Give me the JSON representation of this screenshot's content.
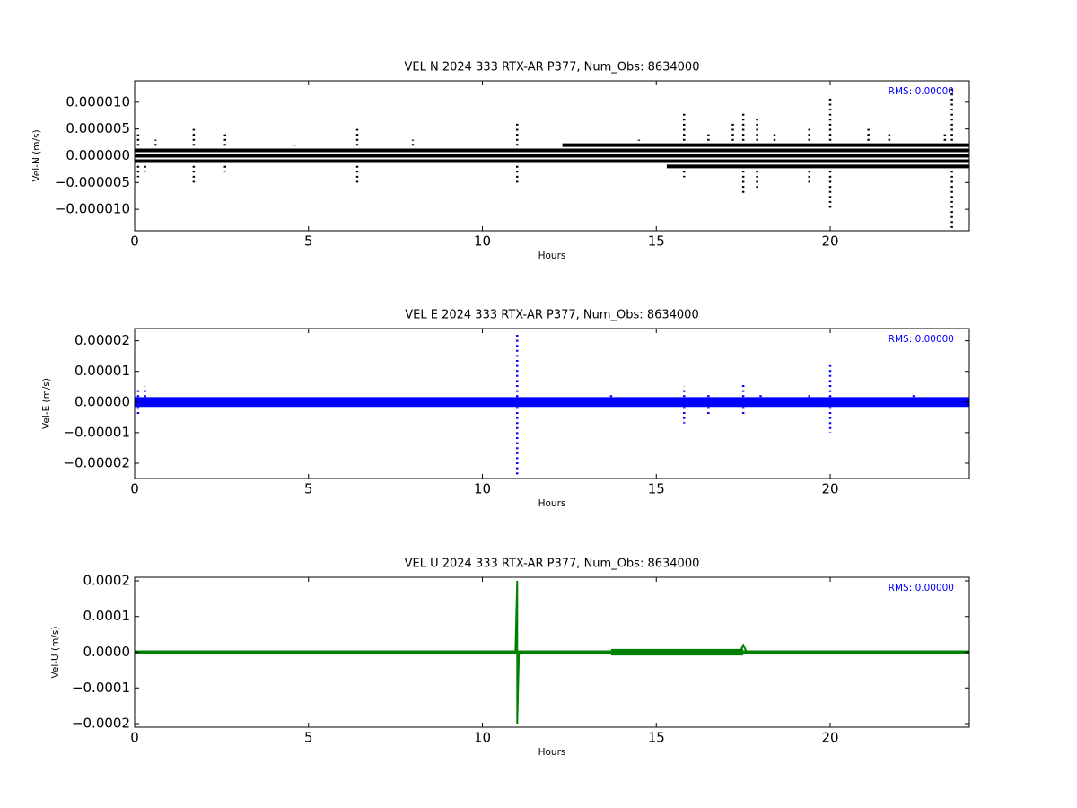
{
  "chart_data": [
    {
      "type": "scatter",
      "title": "VEL N 2024 333 RTX-AR  P377, Num_Obs: 8634000",
      "x_label": "Hours",
      "y_label": "Vel-N (m/s)",
      "annotation": "RMS:  0.00000",
      "annotation_color": "#0000ff",
      "xlim": [
        0,
        24
      ],
      "xticks": [
        0,
        5,
        10,
        15,
        20
      ],
      "ylim": [
        -1.4e-05,
        1.4e-05
      ],
      "yticks": [
        {
          "value": 1e-05,
          "label": "0.000010"
        },
        {
          "value": 5e-06,
          "label": "0.000005"
        },
        {
          "value": 0,
          "label": "0.000000"
        },
        {
          "value": -5e-06,
          "label": "−0.000005"
        },
        {
          "value": -1e-05,
          "label": "−0.000010"
        }
      ],
      "series": [
        {
          "style": "band",
          "color": "#000000",
          "x": [
            0,
            24
          ],
          "values": [
            1e-06,
            1e-06
          ]
        },
        {
          "style": "band",
          "color": "#000000",
          "x": [
            0,
            24
          ],
          "values": [
            0,
            0
          ]
        },
        {
          "style": "band",
          "color": "#000000",
          "x": [
            0,
            24
          ],
          "values": [
            -1e-06,
            -1e-06
          ]
        },
        {
          "style": "band",
          "color": "#000000",
          "x": [
            12.3,
            24
          ],
          "values": [
            2e-06,
            2e-06
          ]
        },
        {
          "style": "band",
          "color": "#000000",
          "x": [
            15.3,
            24
          ],
          "values": [
            -2e-06,
            -2e-06
          ]
        },
        {
          "style": "stems",
          "color": "#000000",
          "x": [
            0.1,
            0.1,
            0.3,
            0.6,
            1.7,
            1.7,
            2.6,
            2.6,
            4.6,
            6.4,
            6.4,
            8,
            11,
            11,
            14.5,
            15.8,
            15.8,
            16.5,
            17.2,
            17.5,
            17.5,
            17.9,
            17.9,
            18.4,
            19.4,
            19.4,
            20,
            20,
            21.1,
            21.7,
            23.3,
            23.5,
            23.5
          ],
          "values": [
            4e-06,
            -4e-06,
            -3e-06,
            3e-06,
            5e-06,
            -5e-06,
            4e-06,
            -3e-06,
            2e-06,
            5e-06,
            -5e-06,
            3e-06,
            6e-06,
            -5e-06,
            3e-06,
            8e-06,
            -4e-06,
            4e-06,
            6e-06,
            8e-06,
            -7e-06,
            7e-06,
            -6e-06,
            4e-06,
            5e-06,
            -5e-06,
            1.1e-05,
            -1e-05,
            5e-06,
            4e-06,
            4e-06,
            1.3e-05,
            -1.4e-05
          ]
        }
      ]
    },
    {
      "type": "scatter",
      "title": "VEL E 2024 333 RTX-AR  P377, Num_Obs: 8634000",
      "x_label": "Hours",
      "y_label": "Vel-E (m/s)",
      "annotation": "RMS:  0.00000",
      "annotation_color": "#0000ff",
      "xlim": [
        0,
        24
      ],
      "xticks": [
        0,
        5,
        10,
        15,
        20
      ],
      "ylim": [
        -2.5e-05,
        2.4e-05
      ],
      "yticks": [
        {
          "value": 2e-05,
          "label": "0.00002"
        },
        {
          "value": 1e-05,
          "label": "0.00001"
        },
        {
          "value": 0,
          "label": "0.00000"
        },
        {
          "value": -1e-05,
          "label": "−0.00001"
        },
        {
          "value": -2e-05,
          "label": "−0.00002"
        }
      ],
      "series": [
        {
          "style": "band",
          "color": "#0000ff",
          "x": [
            0,
            24
          ],
          "values": [
            1e-06,
            1e-06
          ]
        },
        {
          "style": "band",
          "color": "#0000ff",
          "x": [
            0,
            24
          ],
          "values": [
            0,
            0
          ]
        },
        {
          "style": "band",
          "color": "#0000ff",
          "x": [
            0,
            24
          ],
          "values": [
            -1e-06,
            -1e-06
          ]
        },
        {
          "style": "stems",
          "color": "#0000ff",
          "x": [
            0.1,
            0.1,
            0.3,
            11,
            11,
            13.7,
            15.8,
            15.8,
            16.5,
            16.5,
            17.5,
            17.5,
            18,
            19.4,
            20,
            20,
            22.4
          ],
          "values": [
            4e-06,
            -5e-06,
            5e-06,
            2.3e-05,
            -2.4e-05,
            3e-06,
            5e-06,
            -7e-06,
            3e-06,
            -5e-06,
            6e-06,
            -5e-06,
            3e-06,
            3e-06,
            1.2e-05,
            -1e-05,
            3e-06
          ]
        }
      ]
    },
    {
      "type": "line",
      "title": "VEL U 2024 333 RTX-AR  P377, Num_Obs: 8634000",
      "x_label": "Hours",
      "y_label": "Vel-U (m/s)",
      "annotation": "RMS:  0.00000",
      "annotation_color": "#0000ff",
      "xlim": [
        0,
        24
      ],
      "xticks": [
        0,
        5,
        10,
        15,
        20
      ],
      "ylim": [
        -0.00021,
        0.00021
      ],
      "yticks": [
        {
          "value": 0.0002,
          "label": "0.0002"
        },
        {
          "value": 0.0001,
          "label": "0.0001"
        },
        {
          "value": 0,
          "label": "0.0000"
        },
        {
          "value": -0.0001,
          "label": "−0.0001"
        },
        {
          "value": -0.0002,
          "label": "−0.0002"
        }
      ],
      "series": [
        {
          "style": "band",
          "color": "#008000",
          "x": [
            0,
            24
          ],
          "values": [
            0,
            0
          ]
        },
        {
          "style": "band",
          "color": "#008000",
          "x": [
            13.7,
            17.5
          ],
          "values": [
            4e-06,
            4e-06
          ]
        },
        {
          "style": "band",
          "color": "#008000",
          "x": [
            13.7,
            17.5
          ],
          "values": [
            -4e-06,
            -4e-06
          ]
        },
        {
          "style": "line",
          "color": "#008000",
          "x": [
            10.95,
            11,
            11,
            11.05,
            17.4,
            17.5,
            17.6
          ],
          "values": [
            0,
            0.0002,
            -0.0002,
            0,
            0,
            2e-05,
            0
          ]
        }
      ]
    }
  ]
}
